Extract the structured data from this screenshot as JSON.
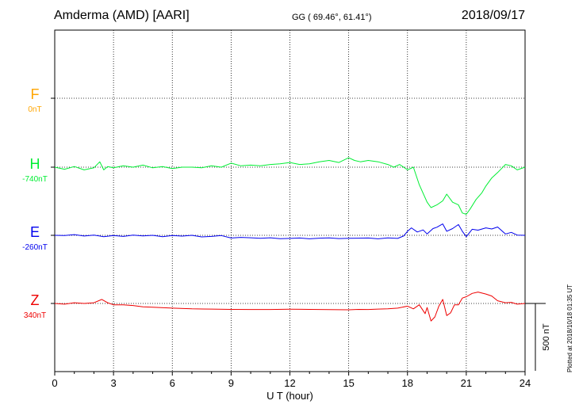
{
  "header": {
    "station": "Amderma (AMD)  [AARI]",
    "coords": "GG ( 69.46°,  61.41°)",
    "date": "2018/09/17"
  },
  "footer_note": "Plotted at 2018/10/18 01:35 UT",
  "chart_data": {
    "type": "line",
    "xlabel": "U T (hour)",
    "xlim": [
      0,
      24
    ],
    "xticks": [
      "0",
      "3",
      "6",
      "9",
      "12",
      "15",
      "18",
      "21",
      "24"
    ],
    "grid": true,
    "scale_bar": {
      "label": "500 nT",
      "value": 500
    },
    "series": [
      {
        "name": "F",
        "baseline": "0nT",
        "color": "#ffa500",
        "x": [],
        "y": []
      },
      {
        "name": "H",
        "baseline": "-740nT",
        "color": "#00ee33",
        "x": [
          0,
          0.5,
          1,
          1.5,
          2,
          2.3,
          2.5,
          2.7,
          3,
          3.5,
          4,
          4.5,
          5,
          5.5,
          6,
          6.5,
          7,
          7.5,
          8,
          8.5,
          9,
          9.5,
          10,
          10.5,
          11,
          11.5,
          12,
          12.5,
          13,
          13.5,
          14,
          14.5,
          15,
          15.3,
          15.6,
          16,
          16.5,
          17,
          17.3,
          17.6,
          18,
          18.3,
          18.6,
          19,
          19.2,
          19.5,
          19.8,
          20,
          20.3,
          20.6,
          20.8,
          21,
          21.2,
          21.5,
          21.8,
          22,
          22.3,
          22.6,
          23,
          23.3,
          23.6,
          24
        ],
        "y": [
          -740,
          -755,
          -735,
          -760,
          -745,
          -700,
          -760,
          -735,
          -745,
          -730,
          -740,
          -725,
          -745,
          -735,
          -750,
          -740,
          -740,
          -745,
          -730,
          -740,
          -710,
          -730,
          -725,
          -730,
          -720,
          -715,
          -705,
          -720,
          -715,
          -700,
          -690,
          -705,
          -670,
          -690,
          -700,
          -690,
          -700,
          -720,
          -740,
          -720,
          -760,
          -740,
          -870,
          -1000,
          -1040,
          -1020,
          -990,
          -940,
          -1000,
          -1020,
          -1080,
          -1090,
          -1050,
          -980,
          -930,
          -880,
          -820,
          -780,
          -720,
          -730,
          -760,
          -740
        ]
      },
      {
        "name": "E",
        "baseline": "-260nT",
        "color": "#0000ee",
        "x": [
          0,
          0.5,
          1,
          1.5,
          2,
          2.5,
          3,
          3.5,
          4,
          4.5,
          5,
          5.5,
          6,
          6.5,
          7,
          7.5,
          8,
          8.5,
          9,
          9.5,
          10,
          10.5,
          11,
          11.5,
          12,
          12.5,
          13,
          13.5,
          14,
          14.5,
          15,
          15.5,
          16,
          16.5,
          17,
          17.5,
          17.8,
          18,
          18.2,
          18.5,
          18.8,
          19,
          19.3,
          19.5,
          19.8,
          20,
          20.3,
          20.6,
          20.8,
          21,
          21.3,
          21.6,
          22,
          22.3,
          22.6,
          23,
          23.3,
          23.6,
          24
        ],
        "y": [
          -260,
          -262,
          -255,
          -265,
          -258,
          -270,
          -262,
          -268,
          -258,
          -264,
          -260,
          -270,
          -262,
          -266,
          -260,
          -272,
          -268,
          -262,
          -280,
          -275,
          -278,
          -282,
          -278,
          -285,
          -283,
          -280,
          -286,
          -281,
          -279,
          -284,
          -282,
          -281,
          -280,
          -286,
          -279,
          -283,
          -265,
          -230,
          -205,
          -235,
          -220,
          -250,
          -210,
          -200,
          -175,
          -230,
          -210,
          -180,
          -230,
          -270,
          -215,
          -222,
          -205,
          -213,
          -198,
          -250,
          -238,
          -258,
          -260
        ]
      },
      {
        "name": "Z",
        "baseline": "340nT",
        "color": "#ee0000",
        "x": [
          0,
          0.5,
          1,
          1.5,
          2,
          2.4,
          2.7,
          3,
          3.5,
          4,
          4.5,
          5,
          6,
          7,
          8,
          9,
          10,
          11,
          12,
          13,
          14,
          15,
          15.5,
          16,
          16.5,
          17,
          17.5,
          18,
          18.3,
          18.6,
          18.9,
          19,
          19.2,
          19.4,
          19.6,
          19.8,
          20,
          20.2,
          20.4,
          20.6,
          20.8,
          21,
          21.3,
          21.6,
          22,
          22.3,
          22.6,
          23,
          23.3,
          23.6,
          24
        ],
        "y": [
          340,
          335,
          345,
          340,
          345,
          370,
          345,
          330,
          330,
          325,
          315,
          312,
          305,
          300,
          298,
          296,
          295,
          295,
          297,
          296,
          294,
          293,
          296,
          295,
          298,
          300,
          305,
          320,
          300,
          330,
          265,
          310,
          210,
          240,
          320,
          370,
          250,
          270,
          330,
          330,
          380,
          390,
          415,
          425,
          410,
          395,
          360,
          345,
          348,
          335,
          340
        ]
      },
      {
        "name": "scale",
        "values": []
      }
    ]
  }
}
